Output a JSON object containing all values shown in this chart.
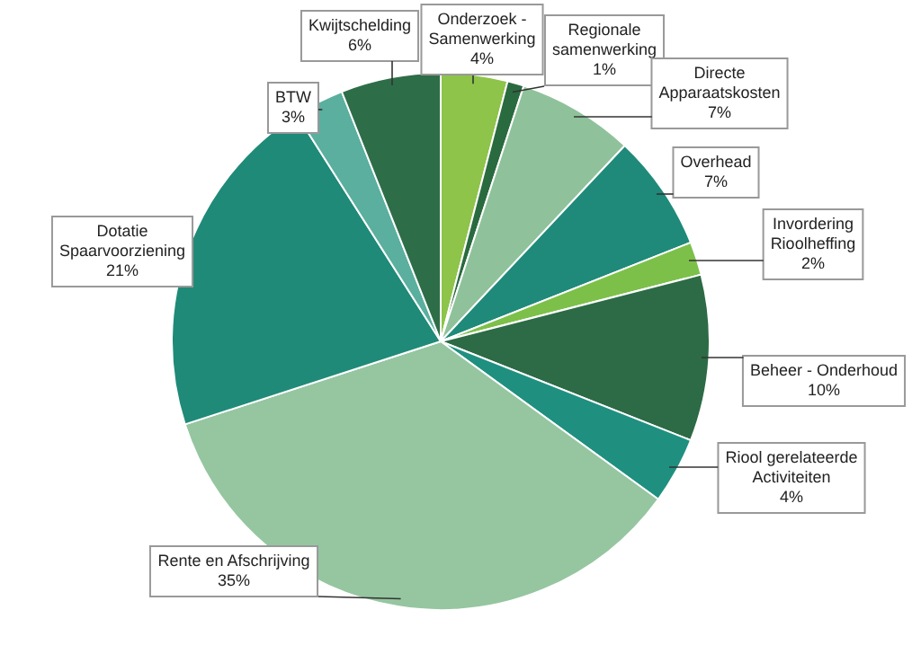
{
  "chart_data": {
    "type": "pie",
    "categories": [
      "Onderzoek - Samenwerking",
      "Regionale samenwerking",
      "Directe Apparaatskosten",
      "Overhead",
      "Invordering Rioolheffing",
      "Beheer - Onderhoud",
      "Riool gerelateerde Activiteiten",
      "Rente en Afschrijving",
      "Dotatie Spaarvoorziening",
      "BTW",
      "Kwijtschelding"
    ],
    "values": [
      4,
      1,
      7,
      7,
      2,
      10,
      4,
      35,
      21,
      3,
      6
    ],
    "value_labels": [
      "4%",
      "1%",
      "7%",
      "7%",
      "2%",
      "10%",
      "4%",
      "35%",
      "21%",
      "3%",
      "6%"
    ],
    "colors": [
      "#8dc449",
      "#2a6a3f",
      "#8fc29a",
      "#1f8a79",
      "#7cc04a",
      "#2c6b45",
      "#1f9080",
      "#95c6a0",
      "#1f8a78",
      "#5aaf9e",
      "#2d6e48"
    ],
    "legend": false
  }
}
